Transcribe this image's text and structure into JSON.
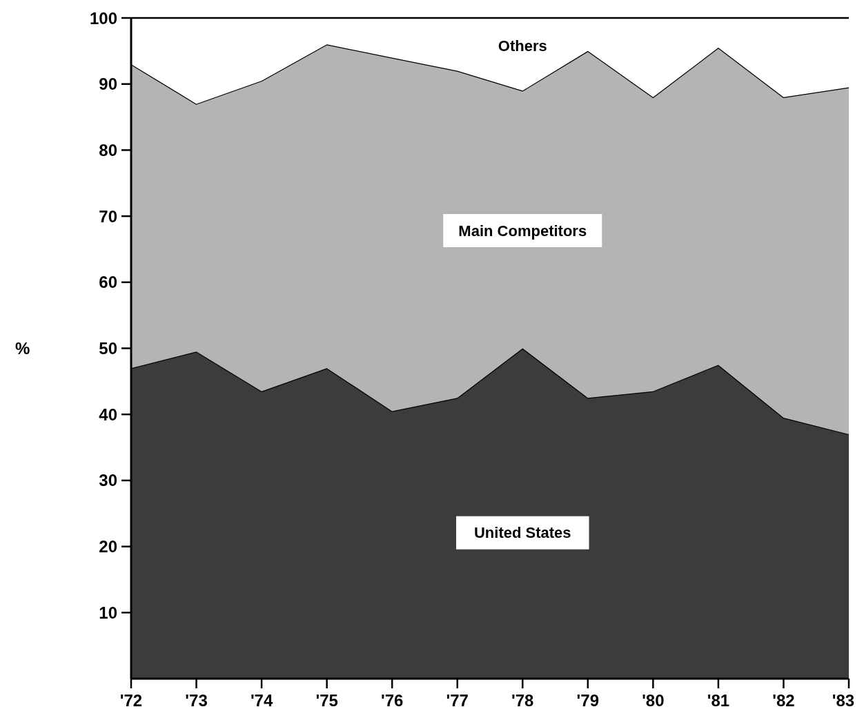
{
  "chart_data": {
    "type": "area",
    "stacked": true,
    "ylabel": "%",
    "categories": [
      "'72",
      "'73",
      "'74",
      "'75",
      "'76",
      "'77",
      "'78",
      "'79",
      "'80",
      "'81",
      "'82",
      "'83"
    ],
    "ylim": [
      0,
      100
    ],
    "yticks": [
      10,
      20,
      30,
      40,
      50,
      60,
      70,
      80,
      90,
      100
    ],
    "grid": false,
    "series": [
      {
        "name": "United States",
        "color": "#3c3c3c",
        "values": [
          47,
          49.5,
          43.5,
          47,
          40.5,
          42.5,
          50,
          42.5,
          43.5,
          47.5,
          39.5,
          37
        ]
      },
      {
        "name": "Main Competitors",
        "color": "#b4b4b4",
        "values": [
          46,
          37.5,
          47,
          49,
          53.5,
          49.5,
          39,
          52.5,
          44.5,
          48,
          48.5,
          52.5
        ]
      },
      {
        "name": "Others",
        "color": "#ffffff",
        "values": [
          7,
          13,
          9.5,
          4,
          6,
          8,
          11,
          5,
          12,
          4.5,
          12,
          10.5
        ]
      }
    ]
  }
}
